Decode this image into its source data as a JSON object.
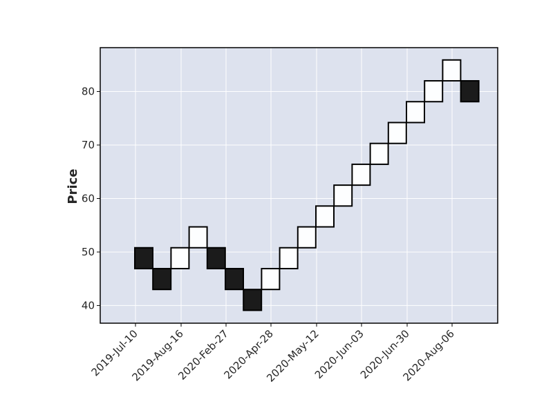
{
  "chart_data": {
    "type": "renko",
    "title": "",
    "xlabel": "",
    "ylabel": "Price",
    "grid": true,
    "ylim": [
      36.7,
      88.2
    ],
    "yticks": [
      40,
      50,
      60,
      70,
      80
    ],
    "xtick_labels": [
      "2019-Jul-10",
      "2019-Aug-16",
      "2020-Feb-27",
      "2020-Apr-28",
      "2020-May-12",
      "2020-Jun-03",
      "2020-Jun-30",
      "2020-Aug-06"
    ],
    "brick_size": 3.9,
    "bricks": [
      {
        "low": 46.9,
        "high": 50.8,
        "direction": "down"
      },
      {
        "low": 43.0,
        "high": 46.9,
        "direction": "down"
      },
      {
        "low": 46.9,
        "high": 50.8,
        "direction": "up"
      },
      {
        "low": 50.8,
        "high": 54.7,
        "direction": "up"
      },
      {
        "low": 46.9,
        "high": 50.8,
        "direction": "down"
      },
      {
        "low": 43.0,
        "high": 46.9,
        "direction": "down"
      },
      {
        "low": 39.1,
        "high": 43.0,
        "direction": "down"
      },
      {
        "low": 43.0,
        "high": 46.9,
        "direction": "up"
      },
      {
        "low": 46.9,
        "high": 50.8,
        "direction": "up"
      },
      {
        "low": 50.8,
        "high": 54.7,
        "direction": "up"
      },
      {
        "low": 54.7,
        "high": 58.6,
        "direction": "up"
      },
      {
        "low": 58.6,
        "high": 62.5,
        "direction": "up"
      },
      {
        "low": 62.5,
        "high": 66.4,
        "direction": "up"
      },
      {
        "low": 66.4,
        "high": 70.3,
        "direction": "up"
      },
      {
        "low": 70.3,
        "high": 74.2,
        "direction": "up"
      },
      {
        "low": 74.2,
        "high": 78.1,
        "direction": "up"
      },
      {
        "low": 78.1,
        "high": 82.0,
        "direction": "up"
      },
      {
        "low": 82.0,
        "high": 85.9,
        "direction": "up"
      },
      {
        "low": 78.1,
        "high": 82.0,
        "direction": "down"
      }
    ],
    "colors": {
      "up_fill": "#fdfeff",
      "down_fill": "#1b1b1b",
      "edge": "#000000",
      "plot_bg": "#dde2ee",
      "grid": "#ffffff"
    }
  }
}
